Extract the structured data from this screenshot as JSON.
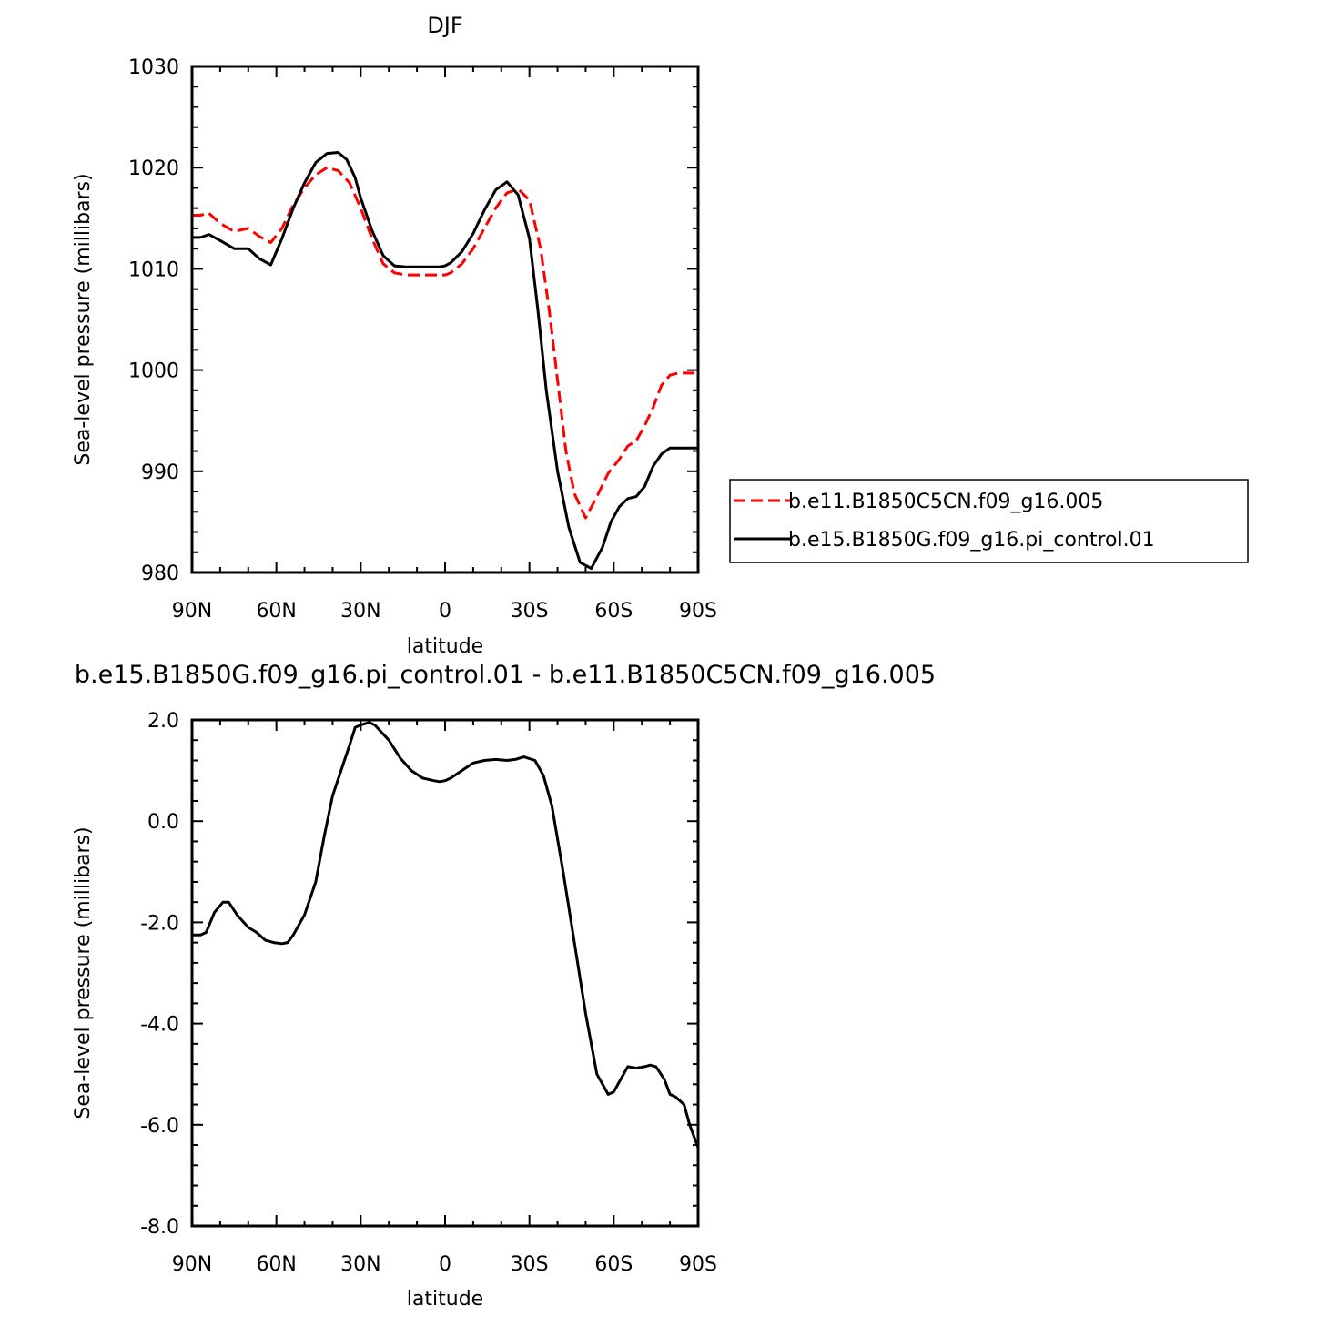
{
  "chart_data": [
    {
      "type": "line",
      "title": "DJF",
      "xlabel": "latitude",
      "ylabel": "Sea-level pressure (millibars)",
      "xlim": [
        90,
        -90
      ],
      "ylim": [
        980,
        1030
      ],
      "x_ticks": [
        90,
        60,
        30,
        0,
        -30,
        -60,
        -90
      ],
      "x_tick_labels": [
        "90N",
        "60N",
        "30N",
        "0",
        "30S",
        "60S",
        "90S"
      ],
      "y_ticks": [
        980,
        990,
        1000,
        1010,
        1020,
        1030
      ],
      "y_tick_labels": [
        "980",
        "990",
        "1000",
        "1010",
        "1020",
        "1030"
      ],
      "legend_position": "right",
      "series": [
        {
          "name": "b.e11.B1850C5CN.f09_g16.005",
          "color": "#ff0000",
          "dash": "dashed",
          "x": [
            90,
            87,
            84,
            80,
            75,
            70,
            66,
            62,
            58,
            54,
            50,
            46,
            42,
            38,
            34,
            30,
            26,
            22,
            18,
            14,
            10,
            6,
            2,
            0,
            -2,
            -6,
            -10,
            -14,
            -18,
            -22,
            -26,
            -30,
            -34,
            -37,
            -40,
            -43,
            -46,
            -50,
            -54,
            -58,
            -62,
            -65,
            -68,
            -71,
            -74,
            -77,
            -80,
            -83,
            -86,
            -90
          ],
          "values": [
            1015.3,
            1015.3,
            1015.5,
            1014.5,
            1013.7,
            1014.0,
            1013.2,
            1012.6,
            1014.0,
            1016.3,
            1018.0,
            1019.3,
            1020.0,
            1019.7,
            1018.5,
            1016.0,
            1013.0,
            1010.5,
            1009.6,
            1009.4,
            1009.4,
            1009.4,
            1009.4,
            1009.4,
            1009.6,
            1010.5,
            1012.0,
            1014.0,
            1016.0,
            1017.5,
            1017.9,
            1016.8,
            1012.0,
            1006.0,
            999.0,
            992.0,
            987.8,
            985.4,
            987.5,
            989.8,
            991.2,
            992.5,
            993.0,
            994.5,
            996.3,
            998.5,
            999.5,
            999.7,
            999.7,
            999.7
          ]
        },
        {
          "name": "b.e15.B1850G.f09_g16.pi_control.01",
          "color": "#000000",
          "dash": "solid",
          "x": [
            90,
            87,
            84,
            80,
            75,
            70,
            66,
            62,
            58,
            54,
            50,
            46,
            42,
            38,
            35,
            32,
            30,
            26,
            22,
            18,
            14,
            10,
            6,
            2,
            0,
            -2,
            -6,
            -10,
            -14,
            -18,
            -22,
            -26,
            -30,
            -33,
            -36,
            -40,
            -44,
            -48,
            -52,
            -56,
            -59,
            -62,
            -65,
            -68,
            -71,
            -74,
            -77,
            -80,
            -83,
            -86,
            -90
          ],
          "values": [
            1013.1,
            1013.1,
            1013.4,
            1012.8,
            1012.0,
            1012.0,
            1011.0,
            1010.4,
            1013.0,
            1016.0,
            1018.5,
            1020.5,
            1021.4,
            1021.5,
            1020.8,
            1019.0,
            1017.0,
            1013.8,
            1011.3,
            1010.3,
            1010.2,
            1010.2,
            1010.2,
            1010.2,
            1010.3,
            1010.6,
            1011.7,
            1013.5,
            1015.8,
            1017.8,
            1018.6,
            1017.3,
            1013.0,
            1006.0,
            998.0,
            990.0,
            984.5,
            981.0,
            980.4,
            982.5,
            985.0,
            986.5,
            987.3,
            987.5,
            988.5,
            990.5,
            991.7,
            992.3,
            992.3,
            992.3,
            992.3
          ]
        }
      ]
    },
    {
      "type": "line",
      "title": "b.e15.B1850G.f09_g16.pi_control.01 - b.e11.B1850C5CN.f09_g16.005",
      "xlabel": "latitude",
      "ylabel": "Sea-level pressure (millibars)",
      "xlim": [
        90,
        -90
      ],
      "ylim": [
        -8,
        2
      ],
      "x_ticks": [
        90,
        60,
        30,
        0,
        -30,
        -60,
        -90
      ],
      "x_tick_labels": [
        "90N",
        "60N",
        "30N",
        "0",
        "30S",
        "60S",
        "90S"
      ],
      "y_ticks": [
        -8,
        -6,
        -4,
        -2,
        0,
        2
      ],
      "y_tick_labels": [
        "-8.0",
        "-6.0",
        "-4.0",
        "-2.0",
        "0.0",
        "2.0"
      ],
      "series": [
        {
          "color": "#000000",
          "dash": "solid",
          "x": [
            90,
            87,
            85,
            82,
            79,
            77,
            74,
            70,
            67,
            64,
            61,
            58,
            56,
            54,
            50,
            46,
            43,
            40,
            37,
            34,
            32,
            30,
            27,
            25,
            20,
            16,
            12,
            8,
            4,
            2,
            0,
            -2,
            -6,
            -10,
            -14,
            -18,
            -22,
            -25,
            -28,
            -32,
            -35,
            -38,
            -42,
            -46,
            -50,
            -54,
            -58,
            -60,
            -62,
            -65,
            -68,
            -71,
            -73,
            -75,
            -78,
            -80,
            -82,
            -85,
            -87,
            -90
          ],
          "values": [
            -2.25,
            -2.25,
            -2.2,
            -1.8,
            -1.6,
            -1.6,
            -1.85,
            -2.1,
            -2.2,
            -2.35,
            -2.4,
            -2.42,
            -2.4,
            -2.25,
            -1.85,
            -1.2,
            -0.3,
            0.5,
            1.0,
            1.5,
            1.85,
            1.9,
            1.95,
            1.9,
            1.6,
            1.25,
            1.0,
            0.85,
            0.8,
            0.78,
            0.8,
            0.85,
            1.0,
            1.15,
            1.2,
            1.22,
            1.2,
            1.22,
            1.27,
            1.2,
            0.9,
            0.3,
            -1.0,
            -2.4,
            -3.8,
            -5.0,
            -5.4,
            -5.35,
            -5.15,
            -4.85,
            -4.88,
            -4.85,
            -4.82,
            -4.85,
            -5.1,
            -5.4,
            -5.45,
            -5.6,
            -6.0,
            -6.45
          ]
        }
      ]
    }
  ]
}
